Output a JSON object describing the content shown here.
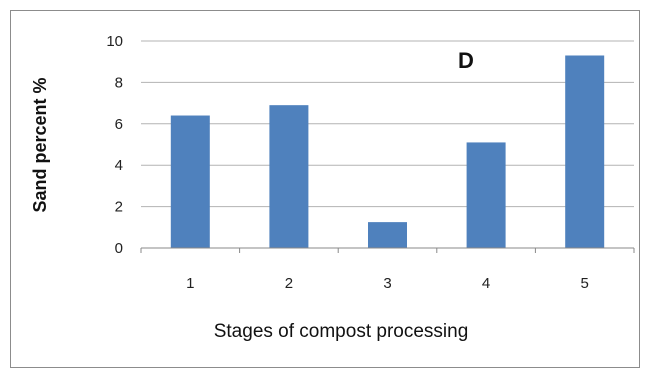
{
  "chart_data": {
    "type": "bar",
    "categories": [
      "1",
      "2",
      "3",
      "4",
      "5"
    ],
    "values": [
      6.4,
      6.9,
      1.25,
      5.1,
      9.3
    ],
    "xlabel": "Stages of compost processing",
    "ylabel": "Sand percent %",
    "annotation": "D",
    "ylim": [
      0,
      10
    ],
    "yticks": [
      0,
      2,
      4,
      6,
      8,
      10
    ],
    "grid": true,
    "legend": "none",
    "bar_color": "#4f81bd",
    "grid_color": "#b3b3b3"
  }
}
